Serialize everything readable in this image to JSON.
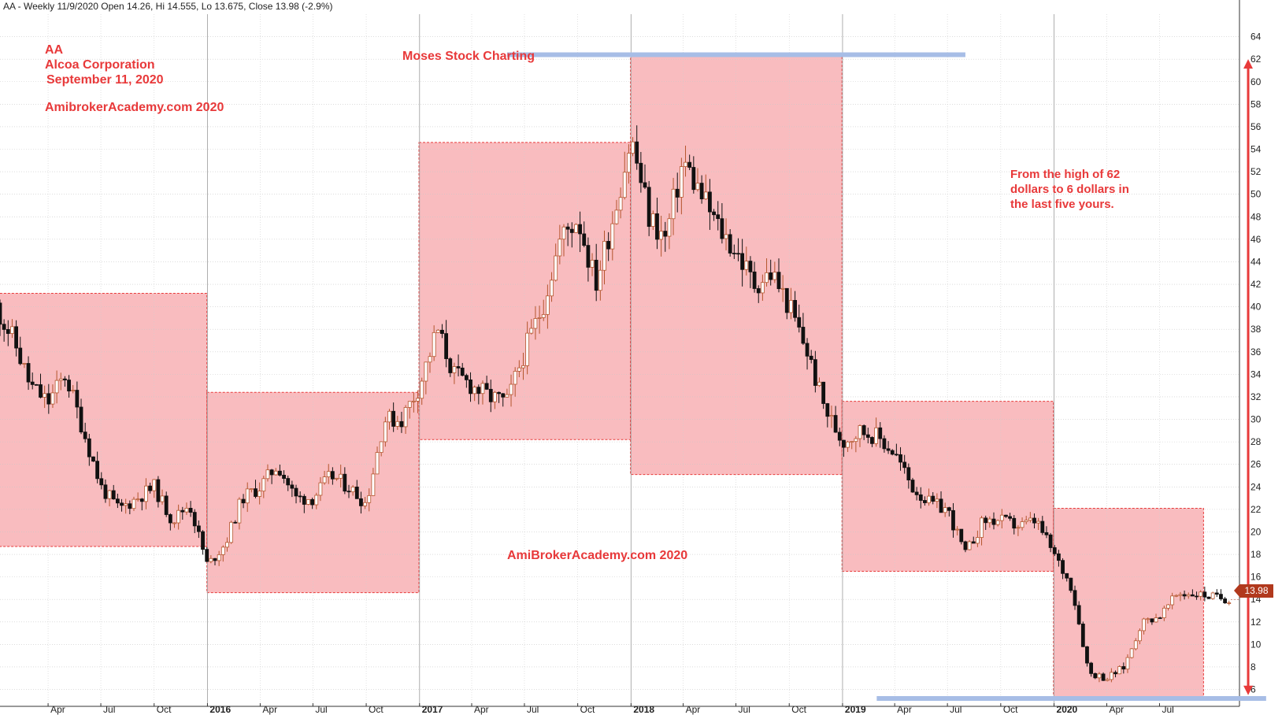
{
  "header": {
    "text": "AA - Weekly 11/9/2020 Open 14.26, Hi 14.555, Lo 13.675, Close 13.98 (-2.9%)"
  },
  "annotations": {
    "ticker": "AA",
    "company": "Alcoa Corporation",
    "date": "September 11, 2020",
    "site_top": "AmibrokerAcademy.com 2020",
    "moses": "Moses Stock Charting",
    "site_bottom": "AmiBrokerAcademy.com  2020",
    "note_lines": [
      "From the high of 62",
      "dollars to 6 dollars in",
      "the last five yours."
    ]
  },
  "last_price": "13.98",
  "colors": {
    "zone_fill": "#f9bcbf",
    "zone_border": "#e83a3a",
    "annotation": "#e8393a",
    "support_resistance": "#a7bde6",
    "arrow": "#e83a3a",
    "candle_up_border": "#b4552d",
    "candle_down": "#111111",
    "last_price_tag": "#b1391d"
  },
  "chart_data": {
    "type": "candlestick",
    "interval": "weekly",
    "x_range": [
      "2015-01",
      "2020-11"
    ],
    "ylim": [
      4.5,
      66
    ],
    "y_ticks": [
      6,
      8,
      10,
      12,
      14,
      16,
      18,
      20,
      22,
      24,
      26,
      28,
      30,
      32,
      34,
      36,
      38,
      40,
      42,
      44,
      46,
      48,
      50,
      52,
      54,
      56,
      58,
      60,
      62,
      64
    ],
    "y_axis_side": "right",
    "grid": true,
    "x_ticks": [
      {
        "label": "Apr",
        "x": "2015-04",
        "bold": false
      },
      {
        "label": "Jul",
        "x": "2015-07",
        "bold": false
      },
      {
        "label": "Oct",
        "x": "2015-10",
        "bold": false
      },
      {
        "label": "2016",
        "x": "2016-01",
        "bold": true
      },
      {
        "label": "Apr",
        "x": "2016-04",
        "bold": false
      },
      {
        "label": "Jul",
        "x": "2016-07",
        "bold": false
      },
      {
        "label": "Oct",
        "x": "2016-10",
        "bold": false
      },
      {
        "label": "2017",
        "x": "2017-01",
        "bold": true
      },
      {
        "label": "Apr",
        "x": "2017-04",
        "bold": false
      },
      {
        "label": "Jul",
        "x": "2017-07",
        "bold": false
      },
      {
        "label": "Oct",
        "x": "2017-10",
        "bold": false
      },
      {
        "label": "2018",
        "x": "2018-01",
        "bold": true
      },
      {
        "label": "Apr",
        "x": "2018-04",
        "bold": false
      },
      {
        "label": "Jul",
        "x": "2018-07",
        "bold": false
      },
      {
        "label": "Oct",
        "x": "2018-10",
        "bold": false
      },
      {
        "label": "2019",
        "x": "2019-01",
        "bold": true
      },
      {
        "label": "Apr",
        "x": "2019-04",
        "bold": false
      },
      {
        "label": "Jul",
        "x": "2019-07",
        "bold": false
      },
      {
        "label": "Oct",
        "x": "2019-10",
        "bold": false
      },
      {
        "label": "2020",
        "x": "2020-01",
        "bold": true
      },
      {
        "label": "Apr",
        "x": "2020-04",
        "bold": false
      },
      {
        "label": "Jul",
        "x": "2020-07",
        "bold": false
      }
    ],
    "price_path": [
      [
        "2015-01",
        40
      ],
      [
        "2015-02",
        37
      ],
      [
        "2015-03",
        33
      ],
      [
        "2015-04",
        31.5
      ],
      [
        "2015-05",
        34
      ],
      [
        "2015-06",
        29
      ],
      [
        "2015-07",
        24
      ],
      [
        "2015-08",
        22
      ],
      [
        "2015-09",
        23
      ],
      [
        "2015-10",
        24
      ],
      [
        "2015-11",
        21
      ],
      [
        "2015-12",
        22.5
      ],
      [
        "2016-01",
        17
      ],
      [
        "2016-02",
        19
      ],
      [
        "2016-03",
        23
      ],
      [
        "2016-04",
        24
      ],
      [
        "2016-05",
        26
      ],
      [
        "2016-06",
        23
      ],
      [
        "2016-07",
        23
      ],
      [
        "2016-08",
        25
      ],
      [
        "2016-09",
        24
      ],
      [
        "2016-10",
        22.5
      ],
      [
        "2016-11",
        30
      ],
      [
        "2016-12",
        30
      ],
      [
        "2017-01",
        33
      ],
      [
        "2017-02",
        38
      ],
      [
        "2017-03",
        34
      ],
      [
        "2017-04",
        33
      ],
      [
        "2017-05",
        32
      ],
      [
        "2017-06",
        31.5
      ],
      [
        "2017-07",
        36
      ],
      [
        "2017-08",
        40
      ],
      [
        "2017-09",
        46
      ],
      [
        "2017-10",
        48
      ],
      [
        "2017-11",
        42
      ],
      [
        "2017-12",
        48
      ],
      [
        "2018-01",
        55
      ],
      [
        "2018-02",
        48
      ],
      [
        "2018-03",
        46
      ],
      [
        "2018-04",
        53
      ],
      [
        "2018-05",
        50
      ],
      [
        "2018-06",
        47
      ],
      [
        "2018-07",
        45
      ],
      [
        "2018-08",
        42
      ],
      [
        "2018-09",
        43
      ],
      [
        "2018-10",
        40
      ],
      [
        "2018-11",
        36
      ],
      [
        "2018-12",
        31
      ],
      [
        "2019-01",
        28
      ],
      [
        "2019-02",
        29
      ],
      [
        "2019-03",
        28.5
      ],
      [
        "2019-04",
        27
      ],
      [
        "2019-05",
        24
      ],
      [
        "2019-06",
        22.5
      ],
      [
        "2019-07",
        22
      ],
      [
        "2019-08",
        18
      ],
      [
        "2019-09",
        21
      ],
      [
        "2019-10",
        21
      ],
      [
        "2019-11",
        20.5
      ],
      [
        "2019-12",
        21
      ],
      [
        "2020-01",
        18
      ],
      [
        "2020-02",
        15
      ],
      [
        "2020-03",
        7.5
      ],
      [
        "2020-04",
        7
      ],
      [
        "2020-05",
        8
      ],
      [
        "2020-06",
        12
      ],
      [
        "2020-07",
        12.5
      ],
      [
        "2020-08",
        14.5
      ],
      [
        "2020-09",
        14.5
      ],
      [
        "2020-11",
        13.98
      ]
    ],
    "last_close": 13.98,
    "zones": [
      {
        "x0": "2015-01",
        "x1": "2015-12-31",
        "top": 41.2,
        "bottom": 18.7
      },
      {
        "x0": "2015-12-31",
        "x1": "2016-12-31",
        "top": 32.4,
        "bottom": 14.6
      },
      {
        "x0": "2016-12-31",
        "x1": "2017-12-31",
        "top": 54.6,
        "bottom": 28.2
      },
      {
        "x0": "2017-12-31",
        "x1": "2018-12-31",
        "top": 62.3,
        "bottom": 25.1
      },
      {
        "x0": "2018-12-31",
        "x1": "2019-12-31",
        "top": 31.6,
        "bottom": 16.5
      },
      {
        "x0": "2019-12-31",
        "x1": "2020-09-15",
        "top": 22.1,
        "bottom": 5.3
      }
    ],
    "levels": [
      {
        "value": 62.4,
        "x0": "2017-06",
        "x1": "2019-08"
      },
      {
        "value": 5.2,
        "x0": "2019-03",
        "x1": "2021-01"
      }
    ],
    "arrow": {
      "x": "2020-12",
      "from": 5.5,
      "to": 62
    }
  }
}
